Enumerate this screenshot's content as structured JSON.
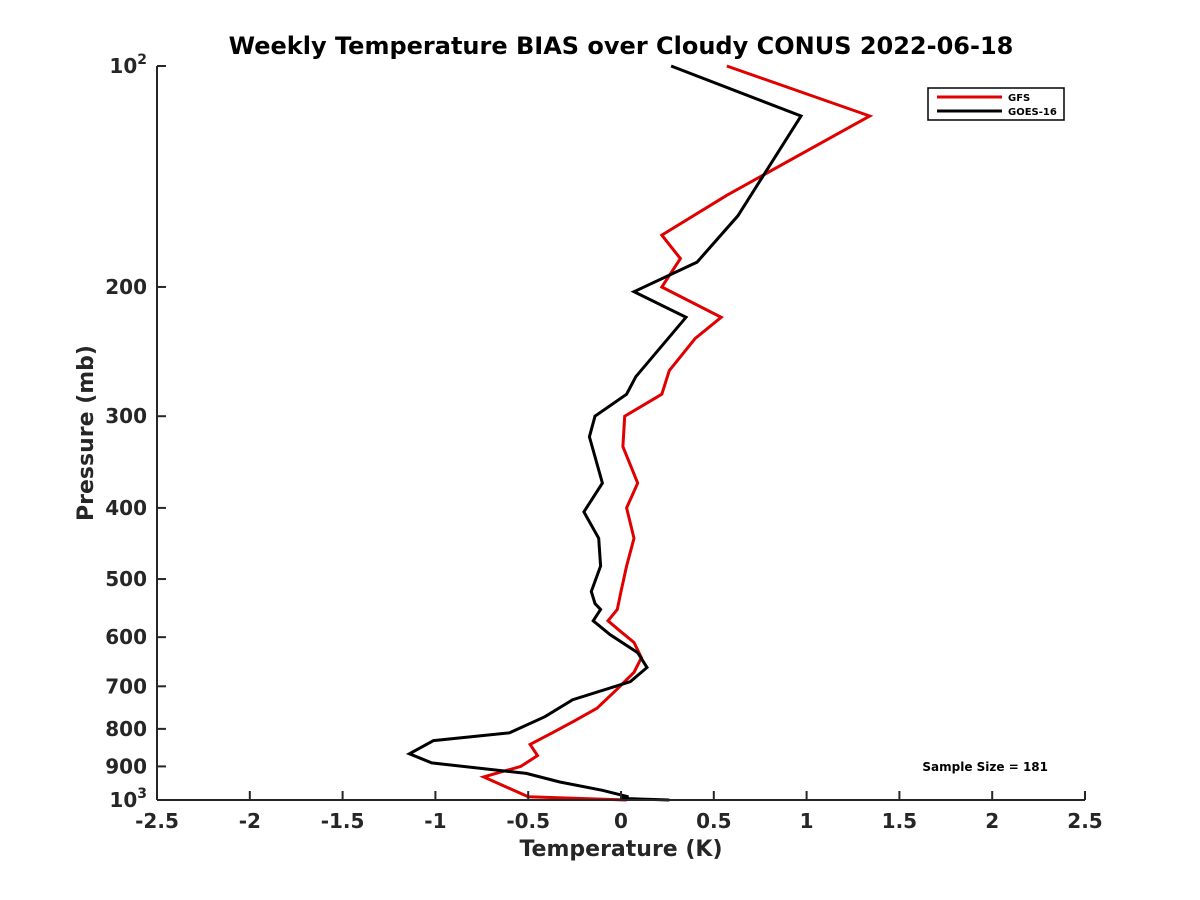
{
  "chart_data": {
    "type": "line",
    "title": "Weekly Temperature BIAS over Cloudy CONUS 2022-06-18",
    "xlabel": "Temperature (K)",
    "ylabel": "Pressure (mb)",
    "xlim": [
      -2.5,
      2.5
    ],
    "ylim": [
      1000,
      100
    ],
    "y_scale": "log",
    "y_reversed": true,
    "grid": false,
    "legend_position": "top-right",
    "annotation": "Sample Size = 181",
    "x_ticks": [
      {
        "value": -2.5,
        "label": "-2.5"
      },
      {
        "value": -2,
        "label": "-2"
      },
      {
        "value": -1.5,
        "label": "-1.5"
      },
      {
        "value": -1,
        "label": "-1"
      },
      {
        "value": -0.5,
        "label": "-0.5"
      },
      {
        "value": 0,
        "label": "0"
      },
      {
        "value": 0.5,
        "label": "0.5"
      },
      {
        "value": 1,
        "label": "1"
      },
      {
        "value": 1.5,
        "label": "1.5"
      },
      {
        "value": 2,
        "label": "2"
      },
      {
        "value": 2.5,
        "label": "2.5"
      }
    ],
    "y_ticks": [
      {
        "value": 100,
        "base": "10",
        "exp": "2"
      },
      {
        "value": 200,
        "base": "200",
        "exp": ""
      },
      {
        "value": 300,
        "base": "300",
        "exp": ""
      },
      {
        "value": 400,
        "base": "400",
        "exp": ""
      },
      {
        "value": 500,
        "base": "500",
        "exp": ""
      },
      {
        "value": 600,
        "base": "600",
        "exp": ""
      },
      {
        "value": 700,
        "base": "700",
        "exp": ""
      },
      {
        "value": 800,
        "base": "800",
        "exp": ""
      },
      {
        "value": 900,
        "base": "900",
        "exp": ""
      },
      {
        "value": 1000,
        "base": "10",
        "exp": "3"
      }
    ],
    "series": [
      {
        "name": "GFS",
        "color": "#e00000",
        "points": [
          [
            0.57,
            100
          ],
          [
            1.34,
            117
          ],
          [
            0.57,
            150
          ],
          [
            0.22,
            170
          ],
          [
            0.32,
            183
          ],
          [
            0.22,
            200
          ],
          [
            0.54,
            220
          ],
          [
            0.4,
            235
          ],
          [
            0.26,
            260
          ],
          [
            0.22,
            280
          ],
          [
            0.02,
            300
          ],
          [
            0.01,
            330
          ],
          [
            0.09,
            370
          ],
          [
            0.03,
            400
          ],
          [
            0.07,
            440
          ],
          [
            0.03,
            480
          ],
          [
            0.0,
            520
          ],
          [
            -0.02,
            550
          ],
          [
            -0.07,
            570
          ],
          [
            0.0,
            590
          ],
          [
            0.07,
            610
          ],
          [
            0.11,
            640
          ],
          [
            0.07,
            670
          ],
          [
            -0.03,
            710
          ],
          [
            -0.13,
            750
          ],
          [
            -0.25,
            780
          ],
          [
            -0.37,
            810
          ],
          [
            -0.49,
            840
          ],
          [
            -0.45,
            870
          ],
          [
            -0.54,
            900
          ],
          [
            -0.74,
            930
          ],
          [
            -0.5,
            990
          ],
          [
            0.03,
            1000
          ]
        ]
      },
      {
        "name": "GOES-16",
        "color": "#000000",
        "points": [
          [
            0.27,
            100
          ],
          [
            0.97,
            117
          ],
          [
            0.63,
            160
          ],
          [
            0.41,
            185
          ],
          [
            0.07,
            203
          ],
          [
            0.35,
            220
          ],
          [
            0.08,
            265
          ],
          [
            0.03,
            280
          ],
          [
            -0.14,
            300
          ],
          [
            -0.17,
            320
          ],
          [
            -0.1,
            370
          ],
          [
            -0.2,
            405
          ],
          [
            -0.12,
            440
          ],
          [
            -0.11,
            480
          ],
          [
            -0.16,
            520
          ],
          [
            -0.14,
            540
          ],
          [
            -0.11,
            550
          ],
          [
            -0.15,
            570
          ],
          [
            -0.06,
            595
          ],
          [
            0.09,
            630
          ],
          [
            0.14,
            660
          ],
          [
            0.05,
            690
          ],
          [
            -0.26,
            730
          ],
          [
            -0.41,
            770
          ],
          [
            -0.6,
            810
          ],
          [
            -1.01,
            830
          ],
          [
            -1.14,
            865
          ],
          [
            -1.02,
            890
          ],
          [
            -0.51,
            920
          ],
          [
            -0.33,
            945
          ],
          [
            -0.1,
            970
          ],
          [
            0.04,
            990
          ],
          [
            0.0,
            995
          ],
          [
            0.26,
            1000
          ]
        ]
      }
    ]
  }
}
